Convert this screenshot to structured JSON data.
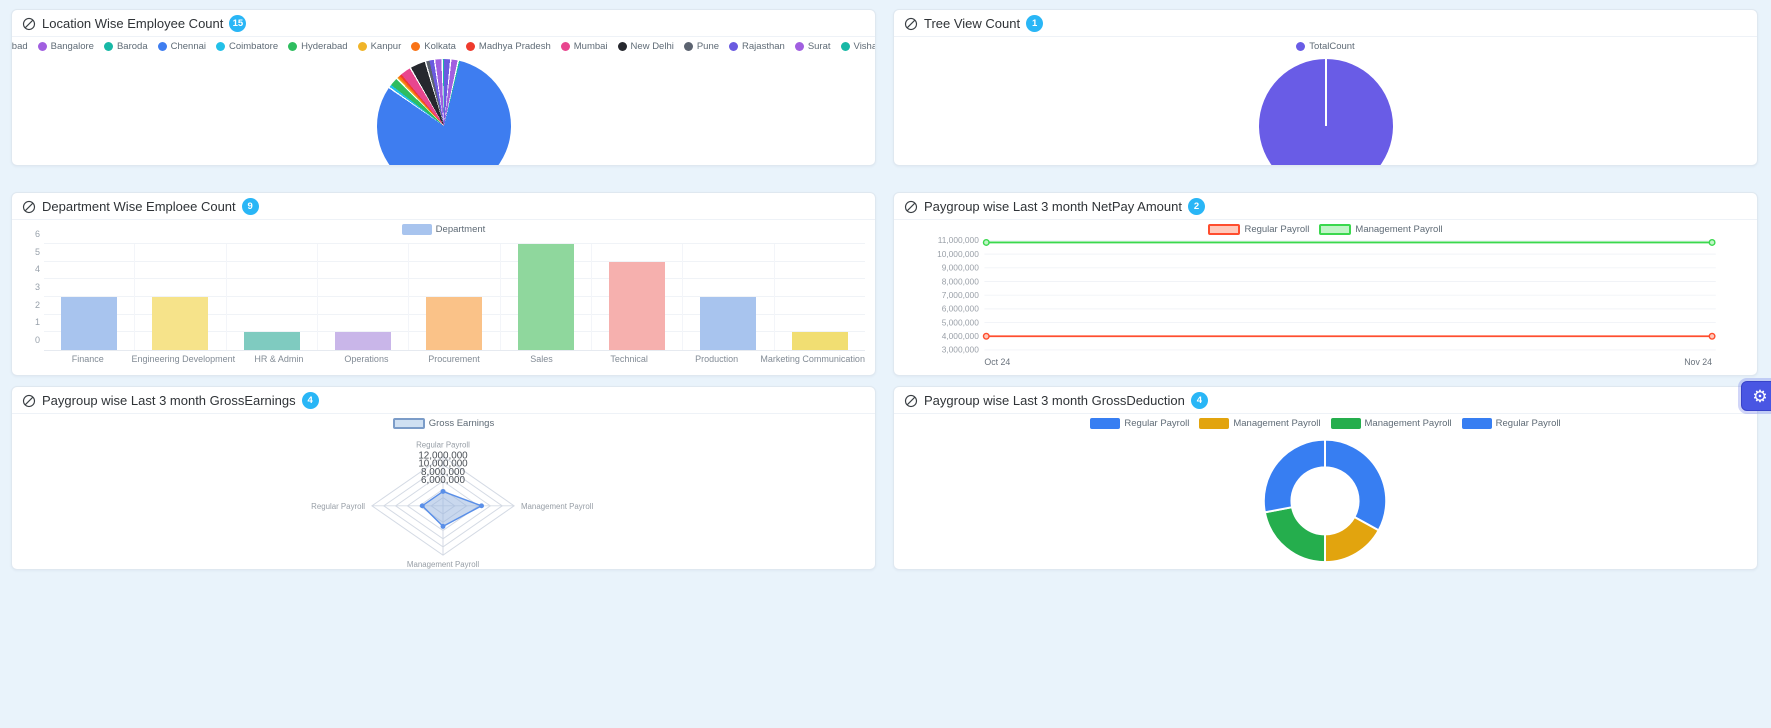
{
  "app": {
    "background": "#e9f3fb",
    "badge_color": "#29b6f6"
  },
  "panels": [
    {
      "id": "location",
      "title": "Location Wise Employee Count",
      "badge": "15"
    },
    {
      "id": "treeview",
      "title": "Tree View Count",
      "badge": "1"
    },
    {
      "id": "department",
      "title": "Department Wise Emploee Count",
      "badge": "9"
    },
    {
      "id": "netpay",
      "title": "Paygroup wise Last 3 month NetPay Amount",
      "badge": "2"
    },
    {
      "id": "grossearnings",
      "title": "Paygroup wise Last 3 month GrossEarnings",
      "badge": "4"
    },
    {
      "id": "grossdeduction",
      "title": "Paygroup wise Last 3 month GrossDeduction",
      "badge": "4"
    }
  ],
  "settings_button": {
    "icon": "gear-icon",
    "glyph": "⚙",
    "color": "#4956e3"
  },
  "chart_data": [
    {
      "id": "location",
      "type": "pie",
      "title": "Location Wise Employee Count",
      "legend_position": "top",
      "labels": [
        "Ahmedabad",
        "Bangalore",
        "Baroda",
        "Chennai",
        "Coimbatore",
        "Hyderabad",
        "Kanpur",
        "Kolkata",
        "Madhya Pradesh",
        "Mumbai",
        "New Delhi",
        "Pune",
        "Rajasthan",
        "Surat",
        "Vishakapattinam"
      ],
      "values_pct": [
        1.8,
        1.8,
        0.3,
        81.0,
        0.6,
        2.2,
        0.3,
        0.5,
        0.5,
        2.8,
        3.9,
        0.8,
        1.4,
        1.8,
        0.3
      ],
      "colors": [
        "#6a5ae0",
        "#a15fe0",
        "#18b8a6",
        "#3e7df0",
        "#22c0e8",
        "#2ebd5f",
        "#f0b429",
        "#f97316",
        "#ef3b2d",
        "#e8468f",
        "#26282e",
        "#5c6370",
        "#6a5ae0",
        "#a15fe0",
        "#18b8a6"
      ]
    },
    {
      "id": "treeview",
      "type": "pie",
      "title": "Tree View Count",
      "legend_position": "top",
      "labels": [
        "TotalCount"
      ],
      "values_pct": [
        100
      ],
      "colors": [
        "#695ce6"
      ]
    },
    {
      "id": "department",
      "type": "bar",
      "title": "Department Wise Emploee Count",
      "legend": "Department",
      "legend_color": "#a8c4ee",
      "categories": [
        "Finance",
        "Engineering Development",
        "HR & Admin",
        "Operations",
        "Procurement",
        "Sales",
        "Technical",
        "Production",
        "Marketing Communication"
      ],
      "values": [
        3,
        3,
        1,
        1,
        3,
        6,
        5,
        3,
        1
      ],
      "bar_colors": [
        "#a8c4ee",
        "#f6e38a",
        "#7fcbc0",
        "#c9b6e9",
        "#fac288",
        "#8fd79d",
        "#f6b0ae",
        "#a8c4ee",
        "#f1de72"
      ],
      "ylim": [
        0,
        6
      ],
      "yticks": [
        0,
        1,
        2,
        3,
        4,
        5,
        6
      ],
      "grid": true
    },
    {
      "id": "netpay",
      "type": "line",
      "title": "Paygroup wise Last 3 month NetPay Amount",
      "x": [
        "Oct 24",
        "Nov 24"
      ],
      "series": [
        {
          "name": "Regular Payroll",
          "color": "#ff4d2e",
          "swatch_fill": "#ffc9ba",
          "values": [
            4000000,
            4000000
          ]
        },
        {
          "name": "Management Payroll",
          "color": "#3bd84e",
          "swatch_fill": "#c0f5c6",
          "values": [
            10850000,
            10850000
          ]
        }
      ],
      "ylim": [
        3000000,
        11000000
      ],
      "yticks": [
        11000000,
        10000000,
        9000000,
        8000000,
        7000000,
        6000000,
        5000000,
        4000000,
        3000000
      ],
      "grid": true,
      "legend_position": "top"
    },
    {
      "id": "grossearnings",
      "type": "radar",
      "title": "Paygroup wise Last 3 month GrossEarnings",
      "legend": "Gross Earnings",
      "legend_stroke": "#7b9cc8",
      "legend_fill": "#cfe0f2",
      "axes": [
        "Regular Payroll",
        "Management Payroll",
        "Management Payroll",
        "Regular Payroll"
      ],
      "max": 12000000,
      "rings": 6,
      "labeled_rings": [
        12000000,
        10000000,
        8000000,
        6000000
      ],
      "values": [
        3500000,
        6500000,
        5000000,
        3500000
      ],
      "stroke": "#5a8fe8",
      "fill": "rgba(147,178,222,0.5)"
    },
    {
      "id": "grossdeduction",
      "type": "donut",
      "title": "Paygroup wise Last 3 month GrossDeduction",
      "segments": [
        {
          "label": "Regular Payroll",
          "color": "#377ef2",
          "pct": 33
        },
        {
          "label": "Management Payroll",
          "color": "#e2a40e",
          "pct": 17
        },
        {
          "label": "Management Payroll",
          "color": "#25ae4d",
          "pct": 22
        },
        {
          "label": "Regular Payroll",
          "color": "#377ef2",
          "pct": 28
        }
      ]
    }
  ]
}
